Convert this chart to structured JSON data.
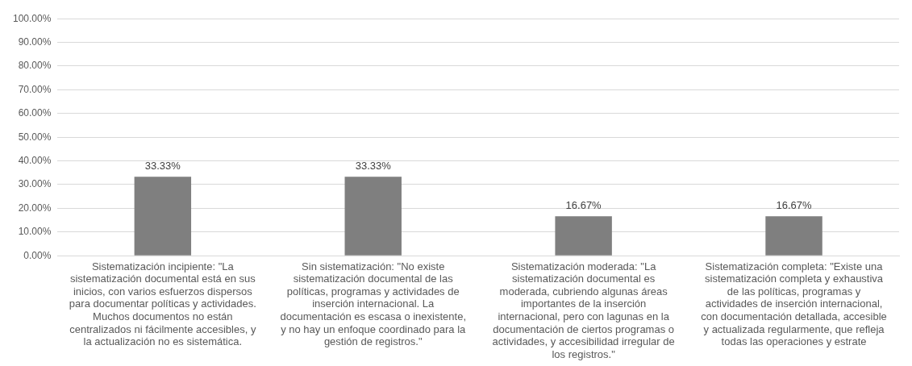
{
  "chart_data": {
    "type": "bar",
    "categories": [
      "Sistematización incipiente: \"La sistematización documental está en sus inicios, con varios esfuerzos dispersos para documentar políticas y actividades. Muchos documentos no están centralizados ni fácilmente accesibles, y la actualización no es sistemática.",
      "Sin sistematización: \"No existe sistematización documental de las políticas, programas y actividades de inserción internacional. La documentación es escasa o inexistente, y no hay un enfoque coordinado para la gestión de registros.\"",
      "Sistematización moderada: \"La sistematización documental es moderada, cubriendo algunas áreas importantes de la inserción internacional, pero con lagunas en la documentación de ciertos programas o actividades, y accesibilidad irregular de los registros.\"",
      "Sistematización completa: \"Existe una sistematización completa y exhaustiva de las políticas, programas y actividades de inserción internacional, con documentación detallada, accesible y actualizada regularmente, que refleja todas las operaciones y estrate"
    ],
    "values": [
      33.33,
      33.33,
      16.67,
      16.67
    ],
    "value_labels": [
      "33.33%",
      "33.33%",
      "16.67%",
      "16.67%"
    ],
    "color": "#7f7f7f",
    "ylim": [
      0,
      100
    ],
    "yticks": [
      {
        "value": 0,
        "label": "0.00%"
      },
      {
        "value": 10,
        "label": "10.00%"
      },
      {
        "value": 20,
        "label": "20.00%"
      },
      {
        "value": 30,
        "label": "30.00%"
      },
      {
        "value": 40,
        "label": "40.00%"
      },
      {
        "value": 50,
        "label": "50.00%"
      },
      {
        "value": 60,
        "label": "60.00%"
      },
      {
        "value": 70,
        "label": "70.00%"
      },
      {
        "value": 80,
        "label": "80.00%"
      },
      {
        "value": 90,
        "label": "90.00%"
      },
      {
        "value": 100,
        "label": "100.00%"
      }
    ],
    "grid": "y",
    "legend": false
  }
}
